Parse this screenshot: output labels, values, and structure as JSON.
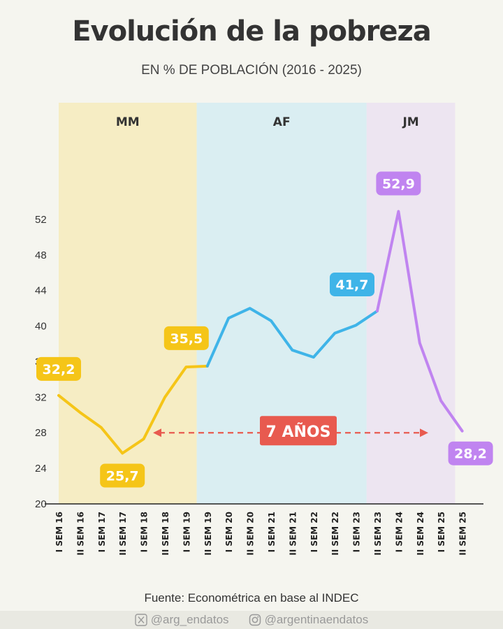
{
  "header": {
    "title": "Evolución de la pobreza",
    "subtitle": "EN % DE POBLACIÓN (2016 - 2025)"
  },
  "chart_data": {
    "type": "line",
    "title": "Evolución de la pobreza",
    "subtitle": "EN % DE POBLACIÓN (2016 - 2025)",
    "xlabel": "",
    "ylabel": "",
    "ylim": [
      20,
      55
    ],
    "yticks": [
      20,
      24,
      28,
      32,
      36,
      40,
      44,
      48,
      52
    ],
    "grid": false,
    "categories": [
      "I SEM 16",
      "II SEM 16",
      "I SEM 17",
      "II SEM 17",
      "I SEM 18",
      "II SEM 18",
      "I SEM 19",
      "II SEM 19",
      "I SEM 20",
      "II SEM 20",
      "I SEM 21",
      "II SEM 21",
      "I SEM 22",
      "II SEM 22",
      "I SEM 23",
      "II SEM 23",
      "I SEM 24",
      "II SEM 24",
      "I SEM 25",
      "II SEM 25"
    ],
    "values": [
      32.2,
      30.3,
      28.6,
      25.7,
      27.3,
      32.0,
      35.4,
      35.5,
      40.9,
      42.0,
      40.6,
      37.3,
      36.5,
      39.2,
      40.1,
      41.7,
      52.9,
      38.1,
      31.6,
      28.2
    ],
    "series": [
      {
        "name": "MM",
        "color": "#f5c518",
        "from": 0,
        "to": 7
      },
      {
        "name": "AF",
        "color": "#3fb4e8",
        "from": 7,
        "to": 15
      },
      {
        "name": "JM",
        "color": "#c084f0",
        "from": 15,
        "to": 19
      }
    ],
    "periods": [
      {
        "label": "MM",
        "from": 0,
        "to": 7,
        "band_color": "#f6edc4"
      },
      {
        "label": "AF",
        "from": 7,
        "to": 15,
        "band_color": "#daeef2"
      },
      {
        "label": "JM",
        "from": 15,
        "to": 19,
        "band_color": "#ede5f1"
      }
    ],
    "data_labels": [
      {
        "index": 0,
        "text": "32,2",
        "color": "#f5c518"
      },
      {
        "index": 3,
        "text": "25,7",
        "color": "#f5c518"
      },
      {
        "index": 7,
        "text": "35,5",
        "color": "#f5c518"
      },
      {
        "index": 15,
        "text": "41,7",
        "color": "#3fb4e8"
      },
      {
        "index": 16,
        "text": "52,9",
        "color": "#c084f0"
      },
      {
        "index": 19,
        "text": "28,2",
        "color": "#c084f0"
      }
    ],
    "annotation": {
      "text": "7 AÑOS",
      "from": 4,
      "to": 18,
      "y": 28,
      "color": "#e85a4f"
    }
  },
  "source": "Fuente: Econométrica en base al INDEC",
  "social": {
    "x_handle": "@arg_endatos",
    "x_icon": "x-logo-icon",
    "instagram_handle": "@argentinaendatos",
    "instagram_icon": "instagram-icon"
  }
}
